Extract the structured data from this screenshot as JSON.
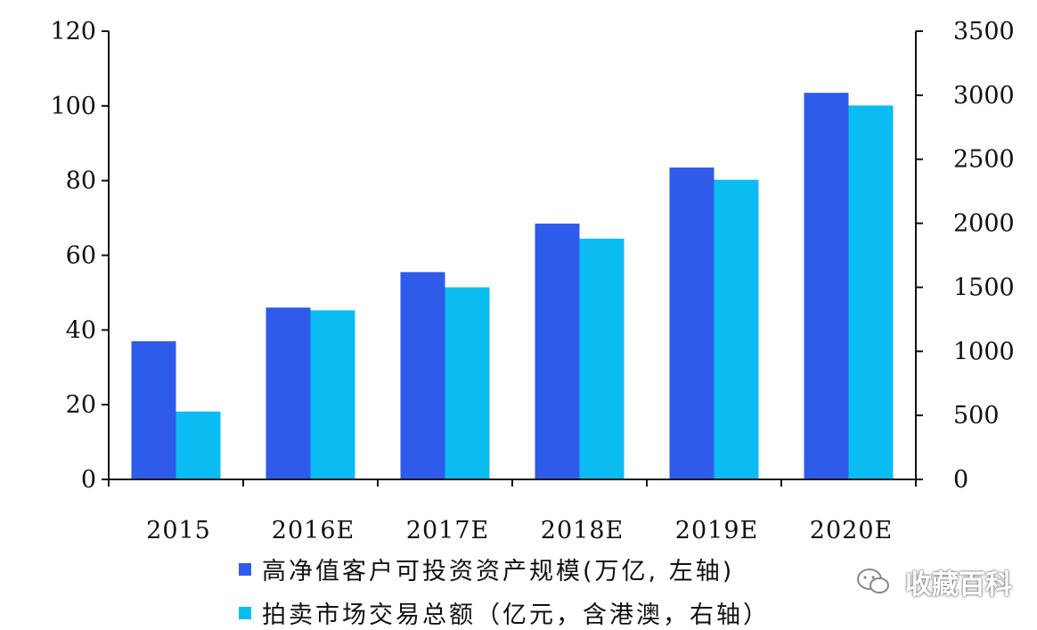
{
  "chart_data": {
    "type": "bar",
    "categories": [
      "2015",
      "2016E",
      "2017E",
      "2018E",
      "2019E",
      "2020E"
    ],
    "series": [
      {
        "name": "高净值客户可投资资产规模(万亿, 左轴)",
        "axis": "left",
        "color": "#2f5bea",
        "values": [
          37,
          46,
          55.5,
          68.5,
          83.5,
          103.5
        ]
      },
      {
        "name": "拍卖市场交易总额（亿元，含港澳，右轴）",
        "axis": "right",
        "color": "#0bbcf2",
        "values": [
          530,
          1320,
          1500,
          1880,
          2340,
          2920
        ]
      }
    ],
    "y_left": {
      "min": 0,
      "max": 120,
      "ticks": [
        "0",
        "20",
        "40",
        "60",
        "80",
        "100",
        "120"
      ]
    },
    "y_right": {
      "min": 0,
      "max": 3500,
      "ticks": [
        "0",
        "500",
        "1000",
        "1500",
        "2000",
        "2500",
        "3000",
        "3500"
      ]
    },
    "legend_position": "bottom",
    "grid": false
  },
  "watermark": {
    "text": "收藏百科",
    "icon": "wechat-chat-icon"
  }
}
